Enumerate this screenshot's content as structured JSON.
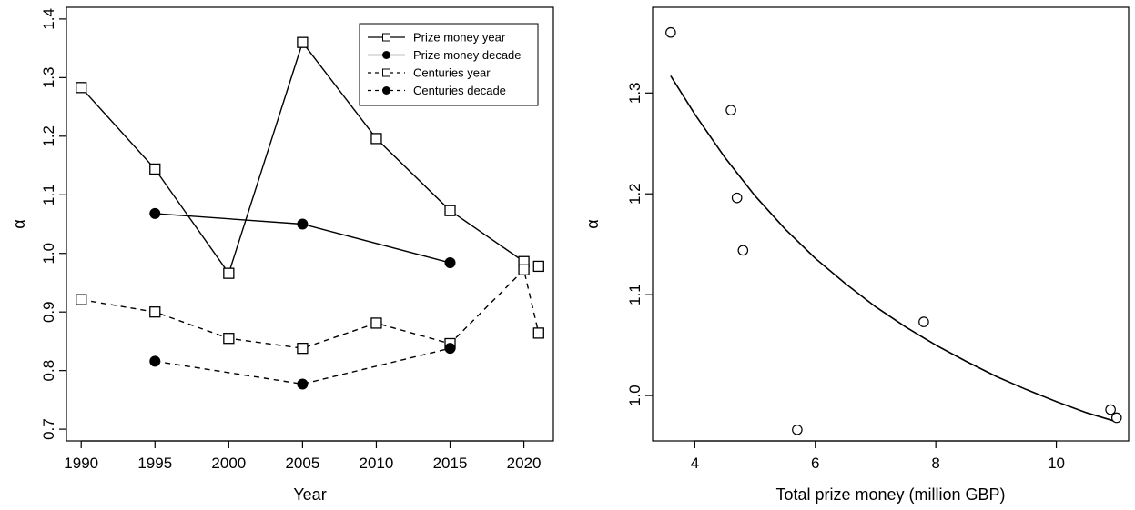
{
  "chart_data": [
    {
      "type": "line",
      "xlabel": "Year",
      "ylabel": "α",
      "xlim": [
        1989,
        2022
      ],
      "ylim": [
        0.68,
        1.42
      ],
      "x_ticks": [
        1990,
        1995,
        2000,
        2005,
        2010,
        2015,
        2020
      ],
      "y_ticks": [
        0.7,
        0.8,
        0.9,
        1.0,
        1.1,
        1.2,
        1.3,
        1.4
      ],
      "y_tick_labels": [
        "0.7",
        "0.8",
        "0.9",
        "1.0",
        "1.1",
        "1.2",
        "1.3",
        "1.4"
      ],
      "legend_position": "top-right",
      "series": [
        {
          "name": "Prize money year",
          "line": "solid",
          "marker": "open-square",
          "x": [
            1990,
            1995,
            2000,
            2005,
            2010,
            2015,
            2020
          ],
          "y": [
            1.283,
            1.144,
            0.966,
            1.36,
            1.196,
            1.073,
            0.986
          ]
        },
        {
          "name": "Prize money decade",
          "line": "solid",
          "marker": "filled-circle",
          "x": [
            1995,
            2005,
            2015
          ],
          "y": [
            1.068,
            1.05,
            0.984
          ]
        },
        {
          "name": "Centuries year",
          "line": "dashed",
          "marker": "open-square",
          "x": [
            1990,
            1995,
            2000,
            2005,
            2010,
            2015,
            2020,
            2021
          ],
          "y": [
            0.921,
            0.9,
            0.855,
            0.838,
            0.881,
            0.846,
            0.972,
            0.864
          ]
        },
        {
          "name": "Centuries decade",
          "line": "dashed",
          "marker": "filled-circle",
          "x": [
            1995,
            2005,
            2015
          ],
          "y": [
            0.816,
            0.777,
            0.838
          ]
        }
      ],
      "extra_points": [
        {
          "x": 2021,
          "y": 0.978,
          "marker": "open-square"
        }
      ]
    },
    {
      "type": "scatter",
      "xlabel": "Total prize money (million GBP)",
      "ylabel": "α",
      "xlim": [
        3.3,
        11.2
      ],
      "ylim": [
        0.955,
        1.385
      ],
      "x_ticks": [
        4,
        6,
        8,
        10
      ],
      "y_ticks": [
        1.0,
        1.1,
        1.2,
        1.3
      ],
      "y_tick_labels": [
        "1.0",
        "1.1",
        "1.2",
        "1.3"
      ],
      "points": {
        "marker": "open-circle",
        "x": [
          3.6,
          4.6,
          4.7,
          4.8,
          5.7,
          7.8,
          10.9,
          11.0
        ],
        "y": [
          1.36,
          1.283,
          1.196,
          1.144,
          0.966,
          1.073,
          0.986,
          0.978
        ]
      },
      "fit_curve": {
        "line": "solid",
        "x": [
          3.6,
          4.0,
          4.5,
          5.0,
          5.5,
          6.0,
          6.5,
          7.0,
          7.5,
          8.0,
          8.5,
          9.0,
          9.5,
          10.0,
          10.5,
          11.0
        ],
        "y": [
          1.317,
          1.279,
          1.236,
          1.198,
          1.165,
          1.136,
          1.111,
          1.088,
          1.068,
          1.05,
          1.034,
          1.019,
          1.006,
          0.994,
          0.983,
          0.974
        ]
      }
    }
  ]
}
